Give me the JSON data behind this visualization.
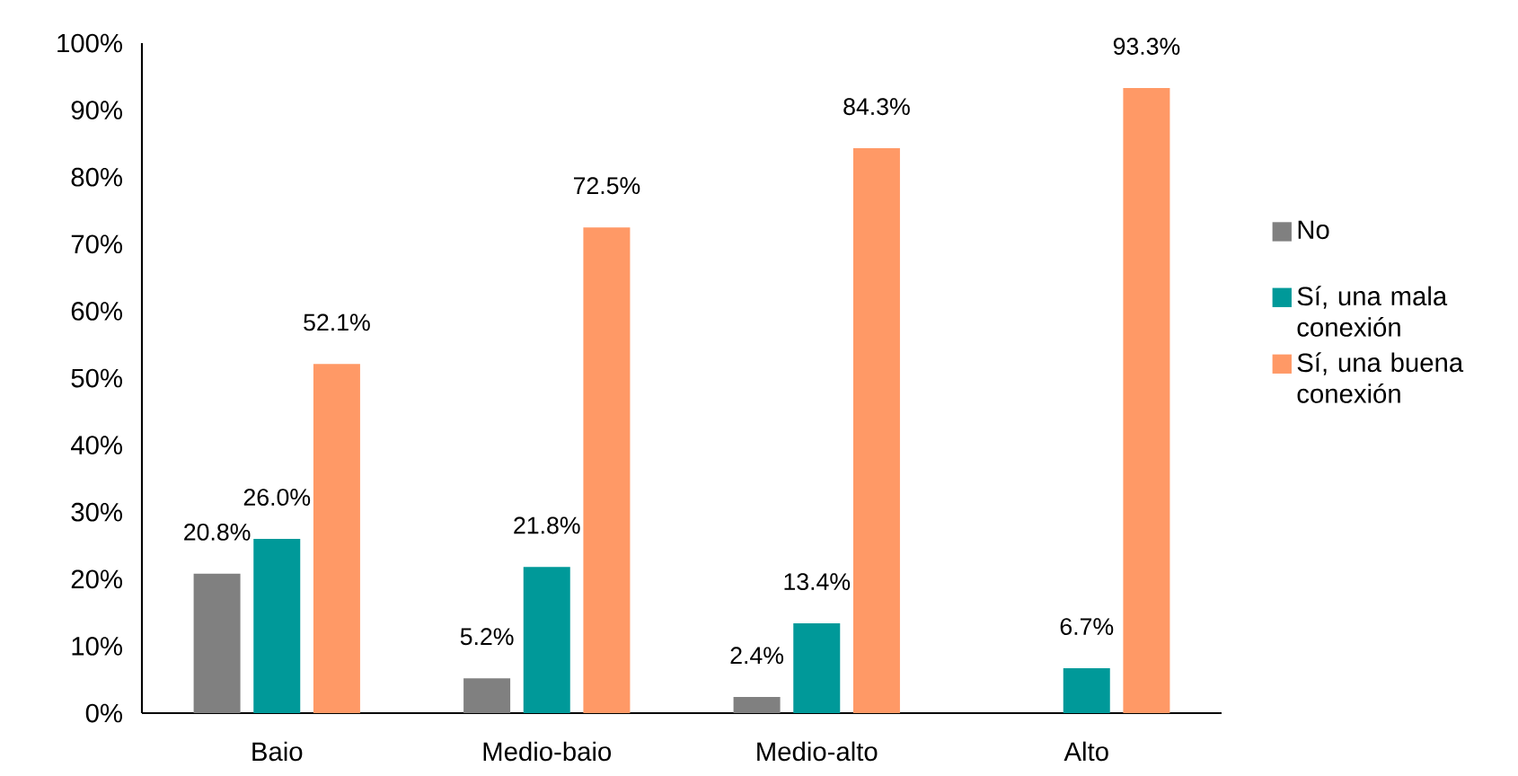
{
  "chart_data": {
    "type": "bar",
    "categories": [
      "Baio",
      "Medio-baio",
      "Medio-alto",
      "Alto"
    ],
    "series": [
      {
        "name": "No",
        "color": "#808080",
        "values": [
          20.8,
          5.2,
          2.4,
          null
        ],
        "value_labels": [
          "20.8%",
          "5.2%",
          "2.4%",
          null
        ]
      },
      {
        "name": "Sí, una mala conexión",
        "color": "#009999",
        "values": [
          26.0,
          21.8,
          13.4,
          6.7
        ],
        "value_labels": [
          "26.0%",
          "21.8%",
          "13.4%",
          "6.7%"
        ]
      },
      {
        "name": "Sí, una buena conexión",
        "color": "#ff9966",
        "values": [
          52.1,
          72.5,
          84.3,
          93.3
        ],
        "value_labels": [
          "52.1%",
          "72.5%",
          "84.3%",
          "93.3%"
        ]
      }
    ],
    "ylim": [
      0,
      100
    ],
    "yticks": [
      {
        "value": 0,
        "label": "0%"
      },
      {
        "value": 10,
        "label": "10%"
      },
      {
        "value": 20,
        "label": "20%"
      },
      {
        "value": 30,
        "label": "30%"
      },
      {
        "value": 40,
        "label": "40%"
      },
      {
        "value": 50,
        "label": "50%"
      },
      {
        "value": 60,
        "label": "60%"
      },
      {
        "value": 70,
        "label": "70%"
      },
      {
        "value": 80,
        "label": "80%"
      },
      {
        "value": 90,
        "label": "90%"
      },
      {
        "value": 100,
        "label": "100%"
      }
    ],
    "legend": "right"
  }
}
